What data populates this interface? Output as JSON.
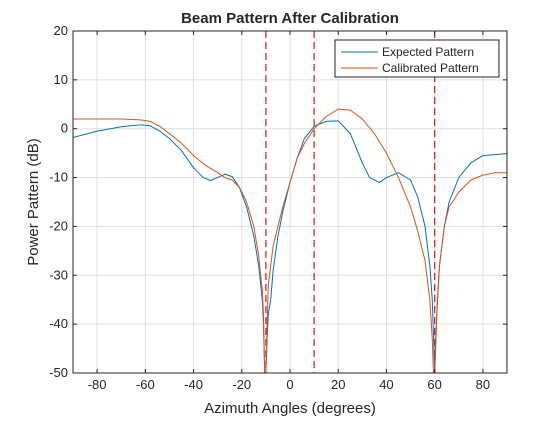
{
  "chart_data": {
    "type": "line",
    "title": "Beam Pattern After Calibration",
    "xlabel": "Azimuth Angles (degrees)",
    "ylabel": "Power Pattern (dB)",
    "xlim": [
      -90,
      90
    ],
    "ylim": [
      -50,
      20
    ],
    "xticks": [
      -80,
      -60,
      -40,
      -20,
      0,
      20,
      40,
      60,
      80
    ],
    "yticks": [
      -50,
      -40,
      -30,
      -20,
      -10,
      0,
      10,
      20
    ],
    "grid": true,
    "legend_position": "top-right",
    "vertical_markers": [
      {
        "x": -10,
        "color": "#d62728",
        "style": "dashed"
      },
      {
        "x": 10,
        "color": "#d62728",
        "style": "dashed"
      },
      {
        "x": 60,
        "color": "#d62728",
        "style": "dashed"
      }
    ],
    "series": [
      {
        "name": "Expected Pattern",
        "color": "#0072bd",
        "x": [
          -90,
          -80,
          -70,
          -62,
          -58,
          -54,
          -50,
          -45,
          -40,
          -36,
          -33,
          -30,
          -27,
          -24,
          -21,
          -18,
          -15,
          -13,
          -11.5,
          -11,
          -10.5,
          -10,
          -9.5,
          -9,
          -8,
          -7,
          -5,
          -3,
          0,
          3,
          6,
          10,
          15,
          20,
          25,
          30,
          33,
          37,
          40,
          45,
          50,
          53,
          56,
          58,
          59,
          59.5,
          60,
          60.5,
          61,
          62,
          64,
          66,
          70,
          75,
          80,
          85,
          90
        ],
        "y": [
          -1.8,
          -0.5,
          0.4,
          0.8,
          0.6,
          -0.5,
          -2,
          -4.5,
          -8,
          -10,
          -10.6,
          -10,
          -9.3,
          -9.8,
          -12,
          -16,
          -22,
          -28,
          -35,
          -40,
          -50,
          -50,
          -43,
          -38,
          -35,
          -29,
          -22,
          -17,
          -11,
          -6,
          -2,
          0.5,
          1.5,
          1.6,
          -1,
          -7,
          -10,
          -11,
          -10,
          -9,
          -10.5,
          -14,
          -20,
          -28,
          -35,
          -42,
          -50,
          -42,
          -37,
          -28,
          -20,
          -15,
          -10,
          -7,
          -5.5,
          -5.3,
          -5.1
        ]
      },
      {
        "name": "Calibrated Pattern",
        "color": "#d95319",
        "x": [
          -90,
          -80,
          -70,
          -62,
          -58,
          -54,
          -50,
          -45,
          -40,
          -35,
          -30,
          -27,
          -24,
          -21,
          -18,
          -15,
          -13,
          -11.5,
          -11,
          -10.5,
          -10,
          -9.5,
          -9,
          -8,
          -7,
          -5,
          -3,
          0,
          3,
          6,
          10,
          15,
          20,
          25,
          30,
          35,
          40,
          45,
          50,
          53,
          56,
          58,
          59,
          59.5,
          60,
          60.5,
          61,
          62,
          64,
          66,
          70,
          75,
          80,
          85,
          90
        ],
        "y": [
          2,
          2,
          2,
          1.8,
          1.5,
          0.5,
          -1,
          -3,
          -5.5,
          -7.5,
          -9,
          -10,
          -10.5,
          -12,
          -15,
          -20,
          -26,
          -33,
          -38,
          -50,
          -50,
          -40,
          -32,
          -28,
          -24,
          -20,
          -16,
          -11,
          -6,
          -3,
          0,
          2.5,
          4,
          3.8,
          2,
          -1,
          -5,
          -10,
          -16,
          -21,
          -27,
          -35,
          -43,
          -50,
          -50,
          -44,
          -36,
          -28,
          -20,
          -16,
          -13,
          -10.5,
          -9.5,
          -9,
          -9
        ]
      }
    ]
  }
}
